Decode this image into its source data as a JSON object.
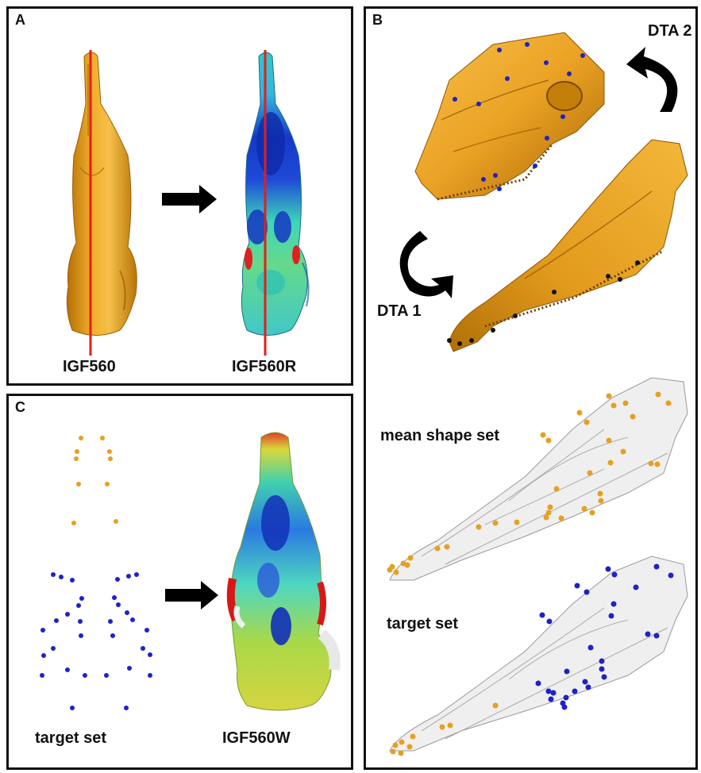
{
  "panels": {
    "a": {
      "letter": "A",
      "left_label": "IGF560",
      "right_label": "IGF560R"
    },
    "b": {
      "letter": "B",
      "dta2_label": "DTA 2",
      "dta1_label": "DTA 1",
      "mean_shape_label": "mean shape set",
      "target_label": "target set"
    },
    "c": {
      "letter": "C",
      "target_label": "target set",
      "result_label": "IGF560W"
    }
  },
  "colors": {
    "bone_gold": "#e8a31f",
    "bone_shadow": "#b87508",
    "red_axis": "#e81c1c",
    "landmark_blue": "#1e22c8",
    "landmark_orange": "#e6a020",
    "landmark_black": "#111111",
    "frame": "#111111"
  }
}
